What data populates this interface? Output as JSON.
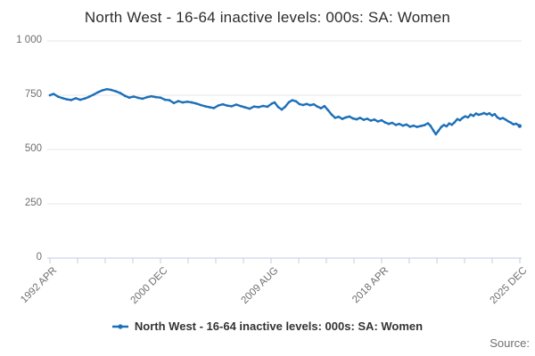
{
  "title": "North West - 16-64 inactive levels: 000s: SA: Women",
  "legend": {
    "label": "North West - 16-64 inactive levels: 000s: SA: Women"
  },
  "source_label": "Source:",
  "colors": {
    "line": "#1d70b8",
    "grid": "#e6e6e6",
    "axis": "#c2cce0",
    "axis_label": "#6f6f6f",
    "title_text": "#2d2d2d",
    "legend_text": "#333333"
  },
  "chart_data": {
    "type": "line",
    "title": "North West - 16-64 inactive levels: 000s: SA: Women",
    "xlabel": "",
    "ylabel": "",
    "grid": true,
    "legend_position": "bottom-center",
    "y_axis": {
      "lim": [
        0,
        1000
      ],
      "ticks": [
        {
          "value": 0,
          "label": "0"
        },
        {
          "value": 250,
          "label": "250"
        },
        {
          "value": 500,
          "label": "500"
        },
        {
          "value": 750,
          "label": "750"
        },
        {
          "value": 1000,
          "label": "1 000"
        }
      ]
    },
    "x_axis": {
      "lim": [
        1992.25,
        2025.92
      ],
      "tick_count": 18,
      "labeled_ticks": [
        {
          "tick": 0,
          "label": "1992 APR"
        },
        {
          "tick": 4,
          "label": "2000 DEC"
        },
        {
          "tick": 8,
          "label": "2009 AUG"
        },
        {
          "tick": 12,
          "label": "2018 APR"
        },
        {
          "tick": 17,
          "label": "2025 DEC"
        }
      ]
    },
    "series": [
      {
        "name": "North West - 16-64 inactive levels: 000s: SA: Women",
        "color": "#1d70b8",
        "points": [
          [
            1992.25,
            750
          ],
          [
            1992.51,
            756
          ],
          [
            1992.82,
            744
          ],
          [
            1993.14,
            737
          ],
          [
            1993.46,
            731
          ],
          [
            1993.78,
            728
          ],
          [
            1994.1,
            736
          ],
          [
            1994.42,
            729
          ],
          [
            1994.74,
            735
          ],
          [
            1995.06,
            743
          ],
          [
            1995.38,
            753
          ],
          [
            1995.7,
            764
          ],
          [
            1996.02,
            773
          ],
          [
            1996.34,
            778
          ],
          [
            1996.66,
            774
          ],
          [
            1996.98,
            768
          ],
          [
            1997.3,
            760
          ],
          [
            1997.62,
            747
          ],
          [
            1997.94,
            739
          ],
          [
            1998.25,
            744
          ],
          [
            1998.57,
            738
          ],
          [
            1998.89,
            734
          ],
          [
            1999.21,
            741
          ],
          [
            1999.53,
            745
          ],
          [
            1999.85,
            741
          ],
          [
            2000.17,
            739
          ],
          [
            2000.49,
            729
          ],
          [
            2000.81,
            727
          ],
          [
            2001.13,
            714
          ],
          [
            2001.45,
            723
          ],
          [
            2001.77,
            717
          ],
          [
            2002.09,
            720
          ],
          [
            2002.41,
            717
          ],
          [
            2002.73,
            712
          ],
          [
            2003.05,
            705
          ],
          [
            2003.37,
            699
          ],
          [
            2003.68,
            695
          ],
          [
            2004.0,
            691
          ],
          [
            2004.32,
            703
          ],
          [
            2004.64,
            708
          ],
          [
            2004.96,
            702
          ],
          [
            2005.28,
            699
          ],
          [
            2005.6,
            707
          ],
          [
            2005.92,
            700
          ],
          [
            2006.24,
            694
          ],
          [
            2006.56,
            688
          ],
          [
            2006.88,
            698
          ],
          [
            2007.2,
            695
          ],
          [
            2007.52,
            701
          ],
          [
            2007.84,
            697
          ],
          [
            2008.16,
            712
          ],
          [
            2008.35,
            717
          ],
          [
            2008.6,
            696
          ],
          [
            2008.86,
            684
          ],
          [
            2009.11,
            697
          ],
          [
            2009.37,
            718
          ],
          [
            2009.62,
            727
          ],
          [
            2009.88,
            722
          ],
          [
            2010.13,
            709
          ],
          [
            2010.39,
            705
          ],
          [
            2010.64,
            710
          ],
          [
            2010.9,
            704
          ],
          [
            2011.16,
            708
          ],
          [
            2011.41,
            698
          ],
          [
            2011.67,
            690
          ],
          [
            2011.92,
            700
          ],
          [
            2012.18,
            681
          ],
          [
            2012.43,
            661
          ],
          [
            2012.69,
            646
          ],
          [
            2012.94,
            651
          ],
          [
            2013.2,
            641
          ],
          [
            2013.45,
            648
          ],
          [
            2013.71,
            652
          ],
          [
            2013.96,
            643
          ],
          [
            2014.22,
            639
          ],
          [
            2014.47,
            646
          ],
          [
            2014.73,
            637
          ],
          [
            2014.99,
            642
          ],
          [
            2015.24,
            633
          ],
          [
            2015.5,
            638
          ],
          [
            2015.75,
            629
          ],
          [
            2016.01,
            635
          ],
          [
            2016.26,
            625
          ],
          [
            2016.52,
            618
          ],
          [
            2016.77,
            623
          ],
          [
            2017.03,
            613
          ],
          [
            2017.28,
            618
          ],
          [
            2017.54,
            610
          ],
          [
            2017.8,
            615
          ],
          [
            2018.05,
            605
          ],
          [
            2018.31,
            610
          ],
          [
            2018.56,
            604
          ],
          [
            2018.82,
            608
          ],
          [
            2019.07,
            612
          ],
          [
            2019.33,
            621
          ],
          [
            2019.52,
            609
          ],
          [
            2019.71,
            589
          ],
          [
            2019.9,
            570
          ],
          [
            2020.09,
            586
          ],
          [
            2020.29,
            604
          ],
          [
            2020.48,
            613
          ],
          [
            2020.67,
            607
          ],
          [
            2020.86,
            620
          ],
          [
            2021.05,
            614
          ],
          [
            2021.24,
            625
          ],
          [
            2021.44,
            640
          ],
          [
            2021.63,
            635
          ],
          [
            2021.82,
            646
          ],
          [
            2022.01,
            653
          ],
          [
            2022.2,
            648
          ],
          [
            2022.4,
            661
          ],
          [
            2022.59,
            655
          ],
          [
            2022.78,
            666
          ],
          [
            2022.97,
            660
          ],
          [
            2023.16,
            663
          ],
          [
            2023.35,
            668
          ],
          [
            2023.55,
            662
          ],
          [
            2023.74,
            667
          ],
          [
            2023.93,
            656
          ],
          [
            2024.12,
            663
          ],
          [
            2024.31,
            648
          ],
          [
            2024.51,
            641
          ],
          [
            2024.7,
            645
          ],
          [
            2024.89,
            638
          ],
          [
            2025.08,
            630
          ],
          [
            2025.27,
            624
          ],
          [
            2025.46,
            616
          ],
          [
            2025.66,
            619
          ],
          [
            2025.91,
            608
          ]
        ]
      }
    ]
  }
}
